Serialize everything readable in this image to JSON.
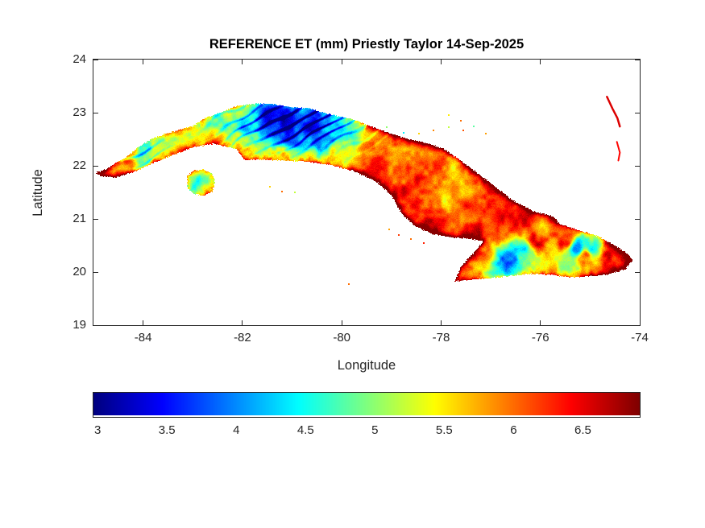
{
  "title": "REFERENCE ET (mm) Priestly Taylor 14-Sep-2025",
  "axes": {
    "xlabel": "Longitude",
    "ylabel": "Latitude",
    "xlim": [
      -85,
      -74
    ],
    "ylim": [
      19,
      24
    ],
    "xticks": [
      -84,
      -82,
      -80,
      -78,
      -76,
      -74
    ],
    "yticks": [
      19,
      20,
      21,
      22,
      23,
      24
    ],
    "tick_color": "#262626"
  },
  "colorbar": {
    "colormap": "jet",
    "vmin": 2.97,
    "vmax": 6.91,
    "ticks": [
      3,
      3.5,
      4,
      4.5,
      5,
      5.5,
      6,
      6.5
    ]
  },
  "chart_data": {
    "type": "heatmap",
    "title": "REFERENCE ET (mm) Priestly Taylor 14-Sep-2025",
    "variable": "Reference evapotranspiration",
    "method": "Priestly Taylor",
    "date": "14-Sep-2025",
    "units": "mm",
    "region": "Cuba",
    "xlabel": "Longitude",
    "ylabel": "Latitude",
    "xlim": [
      -85,
      -74
    ],
    "ylim": [
      19,
      24
    ],
    "grid": false,
    "colormap": "jet",
    "color_range": [
      2.97,
      6.91
    ],
    "colorbar_ticks": [
      3,
      3.5,
      4,
      4.5,
      5,
      5.5,
      6,
      6.5
    ],
    "cuba_outline": [
      [
        -84.95,
        21.87
      ],
      [
        -84.75,
        21.93
      ],
      [
        -84.55,
        22.05
      ],
      [
        -84.35,
        22.15
      ],
      [
        -84.1,
        22.35
      ],
      [
        -83.85,
        22.5
      ],
      [
        -83.55,
        22.6
      ],
      [
        -83.25,
        22.68
      ],
      [
        -83.0,
        22.75
      ],
      [
        -82.75,
        22.9
      ],
      [
        -82.45,
        23.0
      ],
      [
        -82.1,
        23.13
      ],
      [
        -81.7,
        23.17
      ],
      [
        -81.35,
        23.16
      ],
      [
        -81.0,
        23.1
      ],
      [
        -80.65,
        23.08
      ],
      [
        -80.35,
        23.0
      ],
      [
        -80.05,
        22.93
      ],
      [
        -79.7,
        22.85
      ],
      [
        -79.35,
        22.72
      ],
      [
        -79.0,
        22.6
      ],
      [
        -78.65,
        22.5
      ],
      [
        -78.25,
        22.42
      ],
      [
        -77.95,
        22.32
      ],
      [
        -77.6,
        22.1
      ],
      [
        -77.25,
        21.85
      ],
      [
        -76.9,
        21.6
      ],
      [
        -76.55,
        21.35
      ],
      [
        -76.15,
        21.15
      ],
      [
        -75.75,
        21.05
      ],
      [
        -75.6,
        20.9
      ],
      [
        -75.2,
        20.78
      ],
      [
        -74.85,
        20.68
      ],
      [
        -74.5,
        20.5
      ],
      [
        -74.25,
        20.35
      ],
      [
        -74.13,
        20.22
      ],
      [
        -74.3,
        20.05
      ],
      [
        -74.65,
        19.95
      ],
      [
        -75.0,
        19.92
      ],
      [
        -75.4,
        19.9
      ],
      [
        -75.8,
        19.95
      ],
      [
        -76.2,
        19.97
      ],
      [
        -76.65,
        19.92
      ],
      [
        -77.1,
        19.88
      ],
      [
        -77.45,
        19.85
      ],
      [
        -77.72,
        19.83
      ],
      [
        -77.6,
        20.1
      ],
      [
        -77.35,
        20.35
      ],
      [
        -77.15,
        20.58
      ],
      [
        -77.45,
        20.63
      ],
      [
        -77.85,
        20.66
      ],
      [
        -78.2,
        20.72
      ],
      [
        -78.55,
        20.88
      ],
      [
        -78.8,
        21.1
      ],
      [
        -79.0,
        21.45
      ],
      [
        -79.3,
        21.7
      ],
      [
        -79.75,
        21.9
      ],
      [
        -80.25,
        22.02
      ],
      [
        -80.75,
        22.08
      ],
      [
        -81.2,
        22.1
      ],
      [
        -81.65,
        22.12
      ],
      [
        -81.95,
        22.1
      ],
      [
        -82.1,
        22.3
      ],
      [
        -82.55,
        22.42
      ],
      [
        -83.0,
        22.35
      ],
      [
        -83.4,
        22.2
      ],
      [
        -83.8,
        22.05
      ],
      [
        -84.2,
        21.88
      ],
      [
        -84.55,
        21.78
      ],
      [
        -84.85,
        21.8
      ]
    ],
    "isla_de_la_juventud_outline": [
      [
        -83.12,
        21.8
      ],
      [
        -82.98,
        21.92
      ],
      [
        -82.8,
        21.93
      ],
      [
        -82.62,
        21.86
      ],
      [
        -82.55,
        21.7
      ],
      [
        -82.6,
        21.52
      ],
      [
        -82.78,
        21.44
      ],
      [
        -82.98,
        21.47
      ],
      [
        -83.1,
        21.58
      ]
    ],
    "et_control_points": [
      [
        -84.9,
        21.87,
        6.2
      ],
      [
        -84.62,
        21.95,
        5.7
      ],
      [
        -84.3,
        22.02,
        5.9
      ],
      [
        -84.33,
        22.3,
        4.6
      ],
      [
        -84.0,
        22.45,
        4.4
      ],
      [
        -84.05,
        22.15,
        5.1
      ],
      [
        -83.7,
        22.3,
        5.3
      ],
      [
        -83.5,
        22.52,
        4.9
      ],
      [
        -83.2,
        22.45,
        5.4
      ],
      [
        -83.0,
        22.62,
        5.0
      ],
      [
        -82.78,
        22.78,
        4.7
      ],
      [
        -82.5,
        22.55,
        5.5
      ],
      [
        -82.2,
        22.62,
        5.1
      ],
      [
        -82.25,
        23.0,
        4.8
      ],
      [
        -81.9,
        22.75,
        4.3
      ],
      [
        -81.62,
        22.32,
        4.9
      ],
      [
        -81.9,
        22.18,
        5.3
      ],
      [
        -81.5,
        22.9,
        3.7
      ],
      [
        -81.1,
        22.8,
        3.4
      ],
      [
        -80.82,
        23.0,
        3.8
      ],
      [
        -80.6,
        22.7,
        3.5
      ],
      [
        -80.3,
        22.85,
        3.9
      ],
      [
        -80.05,
        22.75,
        4.1
      ],
      [
        -80.9,
        22.5,
        4.1
      ],
      [
        -80.42,
        22.45,
        4.3
      ],
      [
        -81.2,
        22.15,
        5.2
      ],
      [
        -80.6,
        22.15,
        5.4
      ],
      [
        -80.1,
        22.2,
        5.6
      ],
      [
        -79.82,
        22.6,
        4.8
      ],
      [
        -79.9,
        22.35,
        5.3
      ],
      [
        -79.5,
        22.3,
        6.0
      ],
      [
        -79.2,
        22.0,
        6.3
      ],
      [
        -79.4,
        21.85,
        6.2
      ],
      [
        -78.9,
        21.7,
        6.25
      ],
      [
        -78.9,
        22.3,
        5.9
      ],
      [
        -78.4,
        22.1,
        6.0
      ],
      [
        -78.5,
        21.5,
        6.3
      ],
      [
        -78.1,
        21.2,
        6.2
      ],
      [
        -78.2,
        20.85,
        6.35
      ],
      [
        -77.8,
        21.7,
        5.7
      ],
      [
        -77.5,
        21.3,
        6.0
      ],
      [
        -77.4,
        20.7,
        6.3
      ],
      [
        -77.0,
        21.2,
        6.2
      ],
      [
        -76.8,
        20.8,
        6.35
      ],
      [
        -77.9,
        21.45,
        5.5
      ],
      [
        -77.15,
        20.45,
        5.9
      ],
      [
        -76.4,
        21.0,
        6.3
      ],
      [
        -76.1,
        20.6,
        6.4
      ],
      [
        -75.9,
        20.9,
        5.8
      ],
      [
        -75.5,
        20.6,
        6.3
      ],
      [
        -75.1,
        20.3,
        6.1
      ],
      [
        -74.6,
        20.25,
        6.35
      ],
      [
        -74.3,
        20.15,
        6.4
      ],
      [
        -76.65,
        20.25,
        3.7
      ],
      [
        -76.35,
        20.42,
        4.4
      ],
      [
        -75.25,
        20.45,
        3.9
      ],
      [
        -74.95,
        20.45,
        4.5
      ],
      [
        -75.62,
        20.18,
        5.1
      ],
      [
        -82.85,
        21.7,
        4.5
      ],
      [
        -82.7,
        21.58,
        5.0
      ],
      [
        -83.0,
        21.8,
        5.2
      ],
      [
        -85.0,
        21.9,
        6.3
      ]
    ],
    "stripe_bands": {
      "slope": 0.55,
      "period": 0.22,
      "regions": [
        {
          "center": [
            -80.9,
            22.78
          ],
          "sigma": [
            1.5,
            0.45
          ],
          "amp": 1.25
        },
        {
          "center": [
            -84.15,
            22.28
          ],
          "sigma": [
            0.55,
            0.3
          ],
          "amp": 0.9
        }
      ]
    },
    "small_islands_dots": [
      [
        -79.1,
        22.72,
        5.0
      ],
      [
        -78.75,
        22.62,
        4.4
      ],
      [
        -78.45,
        22.6,
        5.6
      ],
      [
        -78.15,
        22.66,
        5.9
      ],
      [
        -77.85,
        22.72,
        5.2
      ],
      [
        -77.55,
        22.66,
        6.1
      ],
      [
        -77.85,
        22.95,
        5.5
      ],
      [
        -77.6,
        22.85,
        6.0
      ],
      [
        -77.35,
        22.74,
        4.8
      ],
      [
        -77.1,
        22.6,
        5.8
      ],
      [
        -78.85,
        20.7,
        6.2
      ],
      [
        -78.6,
        20.62,
        6.0
      ],
      [
        -78.35,
        20.55,
        6.3
      ],
      [
        -79.05,
        20.8,
        5.8
      ],
      [
        -81.45,
        21.6,
        5.6
      ],
      [
        -81.2,
        21.52,
        6.0
      ],
      [
        -80.95,
        21.5,
        5.2
      ],
      [
        -79.85,
        19.78,
        6.0
      ],
      [
        -83.1,
        21.62,
        4.9
      ]
    ],
    "bahamas_lines": [
      {
        "v": 6.55,
        "w": 2.5,
        "pts": [
          [
            -74.66,
            23.3
          ],
          [
            -74.55,
            23.08
          ],
          [
            -74.45,
            22.9
          ],
          [
            -74.4,
            22.74
          ]
        ]
      },
      {
        "v": 6.4,
        "w": 2.0,
        "pts": [
          [
            -74.46,
            22.45
          ],
          [
            -74.4,
            22.25
          ],
          [
            -74.43,
            22.1
          ]
        ]
      }
    ]
  }
}
